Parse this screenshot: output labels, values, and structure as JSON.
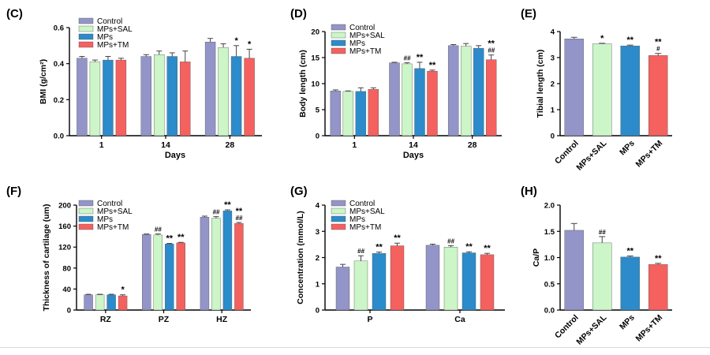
{
  "colors": {
    "Control": "#9394c7",
    "MPs+SAL": "#ccf5c8",
    "MPs": "#2c8bca",
    "MPs+TM": "#f4615f",
    "error": "#444444"
  },
  "chart_data": [
    {
      "panel": "(C)",
      "type": "bar",
      "xlabel": "Days",
      "ylabel": "BMI (g/cm²)",
      "ylim": [
        0,
        0.6
      ],
      "yticks": [
        "0.0",
        "0.2",
        "0.4",
        "0.6"
      ],
      "categories": [
        "1",
        "14",
        "28"
      ],
      "legend": "top-left",
      "series": [
        {
          "name": "Control",
          "values": [
            0.43,
            0.44,
            0.52
          ],
          "errors": [
            0.01,
            0.01,
            0.02
          ],
          "annotations": [
            "",
            "",
            ""
          ]
        },
        {
          "name": "MPs+SAL",
          "values": [
            0.41,
            0.45,
            0.49
          ],
          "errors": [
            0.01,
            0.02,
            0.02
          ],
          "annotations": [
            "",
            "",
            ""
          ]
        },
        {
          "name": "MPs",
          "values": [
            0.42,
            0.44,
            0.44
          ],
          "errors": [
            0.02,
            0.02,
            0.06
          ],
          "annotations": [
            "",
            "",
            "*"
          ]
        },
        {
          "name": "MPs+TM",
          "values": [
            0.42,
            0.41,
            0.43
          ],
          "errors": [
            0.01,
            0.06,
            0.05
          ],
          "annotations": [
            "",
            "",
            "*"
          ]
        }
      ]
    },
    {
      "panel": "(D)",
      "type": "bar",
      "xlabel": "Days",
      "ylabel": "Body length (cm)",
      "ylim": [
        0,
        20
      ],
      "yticks": [
        "0",
        "5",
        "10",
        "15",
        "20"
      ],
      "categories": [
        "1",
        "14",
        "28"
      ],
      "legend": "top-left",
      "series": [
        {
          "name": "Control",
          "values": [
            8.6,
            14.0,
            17.3
          ],
          "errors": [
            0.2,
            0.1,
            0.2
          ],
          "annotations": [
            "",
            "",
            ""
          ]
        },
        {
          "name": "MPs+SAL",
          "values": [
            8.5,
            13.8,
            17.2
          ],
          "errors": [
            0.1,
            0.2,
            0.5
          ],
          "annotations": [
            "",
            "##",
            ""
          ]
        },
        {
          "name": "MPs",
          "values": [
            8.5,
            12.9,
            16.8
          ],
          "errors": [
            0.7,
            1.2,
            0.5
          ],
          "annotations": [
            "",
            "**",
            ""
          ]
        },
        {
          "name": "MPs+TM",
          "values": [
            8.9,
            12.4,
            14.6
          ],
          "errors": [
            0.3,
            0.2,
            0.9
          ],
          "annotations": [
            "",
            "**",
            "**\n##"
          ]
        }
      ]
    },
    {
      "panel": "(E)",
      "type": "bar",
      "xlabel": "",
      "ylabel": "Tibial length (cm)",
      "ylim": [
        0,
        4
      ],
      "yticks": [
        "0",
        "1",
        "2",
        "3",
        "4"
      ],
      "categories": [
        "Control",
        "MPs+SAL",
        "MPs",
        "MPs+TM"
      ],
      "legend": "none",
      "series": [
        {
          "name": "",
          "values": [
            3.72,
            3.53,
            3.45,
            3.08
          ],
          "errors": [
            0.06,
            0.02,
            0.03,
            0.08
          ],
          "annotations": [
            "",
            "*",
            "**",
            "**\n#"
          ]
        }
      ]
    },
    {
      "panel": "(F)",
      "type": "bar",
      "xlabel": "",
      "ylabel": "Thickness of cartilage (um)",
      "ylim": [
        0,
        200
      ],
      "yticks": [
        "0",
        "40",
        "80",
        "120",
        "160",
        "200"
      ],
      "categories": [
        "RZ",
        "PZ",
        "HZ"
      ],
      "legend": "top-left",
      "series": [
        {
          "name": "Control",
          "values": [
            29,
            144,
            177
          ],
          "errors": [
            1,
            1,
            2
          ],
          "annotations": [
            "",
            "",
            ""
          ]
        },
        {
          "name": "MPs+SAL",
          "values": [
            29,
            143,
            175
          ],
          "errors": [
            1,
            2,
            3
          ],
          "annotations": [
            "",
            "##",
            "##"
          ]
        },
        {
          "name": "MPs",
          "values": [
            29,
            126,
            189
          ],
          "errors": [
            1,
            1,
            2
          ],
          "annotations": [
            "",
            "**",
            "**"
          ]
        },
        {
          "name": "MPs+TM",
          "values": [
            27,
            128,
            165
          ],
          "errors": [
            2,
            1,
            2
          ],
          "annotations": [
            "*",
            "**",
            "**\n##"
          ]
        }
      ]
    },
    {
      "panel": "(G)",
      "type": "bar",
      "xlabel": "",
      "ylabel": "Concentration (mmol/L)",
      "ylim": [
        0,
        4
      ],
      "yticks": [
        "0",
        "1",
        "2",
        "3",
        "4"
      ],
      "categories": [
        "P",
        "Ca"
      ],
      "legend": "top-left",
      "series": [
        {
          "name": "Control",
          "values": [
            1.64,
            2.47
          ],
          "errors": [
            0.1,
            0.04
          ],
          "annotations": [
            "",
            ""
          ]
        },
        {
          "name": "MPs+SAL",
          "values": [
            1.87,
            2.4
          ],
          "errors": [
            0.2,
            0.05
          ],
          "annotations": [
            "##",
            "##"
          ]
        },
        {
          "name": "MPs",
          "values": [
            2.16,
            2.18
          ],
          "errors": [
            0.05,
            0.04
          ],
          "annotations": [
            "**",
            "**"
          ]
        },
        {
          "name": "MPs+TM",
          "values": [
            2.45,
            2.11
          ],
          "errors": [
            0.1,
            0.05
          ],
          "annotations": [
            "**",
            "**"
          ]
        }
      ]
    },
    {
      "panel": "(H)",
      "type": "bar",
      "xlabel": "",
      "ylabel": "Ca/P",
      "ylim": [
        0,
        2.0
      ],
      "yticks": [
        "0.0",
        "0.5",
        "1.0",
        "1.5",
        "2.0"
      ],
      "categories": [
        "Control",
        "MPs+SAL",
        "MPs",
        "MPs+TM"
      ],
      "legend": "none",
      "series": [
        {
          "name": "",
          "values": [
            1.52,
            1.28,
            1.01,
            0.87
          ],
          "errors": [
            0.13,
            0.12,
            0.02,
            0.02
          ],
          "annotations": [
            "",
            "##",
            "**",
            "**"
          ]
        }
      ]
    }
  ]
}
